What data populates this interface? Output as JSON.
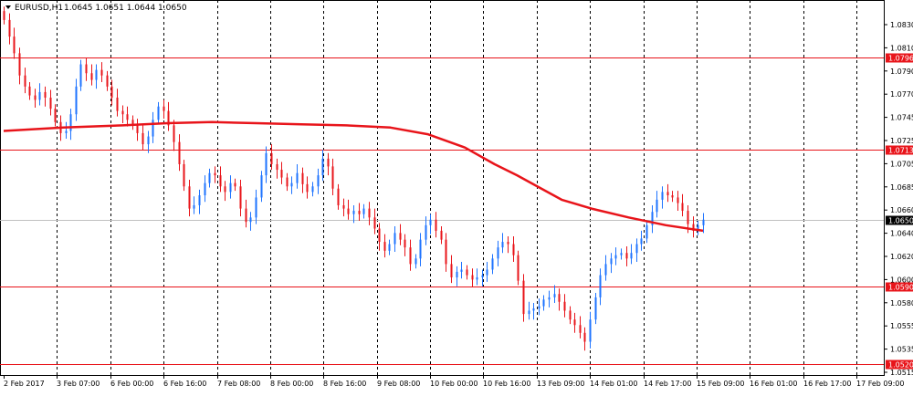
{
  "header": {
    "symbol": "EURUSD,H1",
    "ohlc": "1.0645 1.0651 1.0644 1.0650"
  },
  "colors": {
    "bull": "#1e73ff",
    "bear": "#e8141a",
    "ma": "#e8141a",
    "hline": "#e8141a",
    "price_line": "#c0c0c0",
    "grid": "#000000"
  },
  "chart_data": {
    "type": "candlestick",
    "ylim": [
      1.051,
      1.0848
    ],
    "y_ticks": [
      "1.0830",
      "1.0810",
      "1.0790",
      "1.0770",
      "1.0745",
      "1.0725",
      "1.0705",
      "1.0685",
      "1.0660",
      "1.0640",
      "1.0620",
      "1.0600",
      "1.0580",
      "1.0555",
      "1.0535",
      "1.0515"
    ],
    "x_ticks": [
      "2 Feb 2017",
      "3 Feb 07:00",
      "6 Feb 00:00",
      "6 Feb 16:00",
      "7 Feb 08:00",
      "8 Feb 00:00",
      "8 Feb 16:00",
      "9 Feb 08:00",
      "10 Feb 00:00",
      "10 Feb 16:00",
      "13 Feb 09:00",
      "14 Feb 01:00",
      "14 Feb 17:00",
      "15 Feb 09:00",
      "16 Feb 01:00",
      "16 Feb 17:00",
      "17 Feb 09:00"
    ],
    "horizontal_levels": [
      {
        "label": "1.0796",
        "value": 1.0796
      },
      {
        "label": "1.0713",
        "value": 1.0713
      },
      {
        "label": "1.0590",
        "value": 1.059
      },
      {
        "label": "1.0520",
        "value": 1.052
      }
    ],
    "current_price": {
      "label": "1.0650",
      "value": 1.065
    },
    "close": [
      1.083,
      1.0815,
      1.08,
      1.078,
      1.077,
      1.0762,
      1.0758,
      1.0765,
      1.076,
      1.075,
      1.0738,
      1.0728,
      1.073,
      1.0745,
      1.077,
      1.079,
      1.0782,
      1.0776,
      1.0785,
      1.078,
      1.077,
      1.076,
      1.0748,
      1.0745,
      1.074,
      1.0735,
      1.0728,
      1.0718,
      1.0725,
      1.074,
      1.0752,
      1.0748,
      1.0735,
      1.072,
      1.07,
      1.068,
      1.066,
      1.0663,
      1.0672,
      1.0683,
      1.0692,
      1.069,
      1.068,
      1.0675,
      1.0683,
      1.068,
      1.066,
      1.0648,
      1.0652,
      1.067,
      1.069,
      1.071,
      1.07,
      1.0695,
      1.0688,
      1.068,
      1.0683,
      1.0692,
      1.0682,
      1.0675,
      1.068,
      1.069,
      1.0705,
      1.0698,
      1.0678,
      1.0663,
      1.066,
      1.0655,
      1.0658,
      1.0655,
      1.066,
      1.0652,
      1.0642,
      1.063,
      1.0622,
      1.0628,
      1.0638,
      1.0632,
      1.0625,
      1.061,
      1.0615,
      1.0632,
      1.0645,
      1.065,
      1.064,
      1.0632,
      1.061,
      1.0598,
      1.0603,
      1.0605,
      1.06,
      1.0596,
      1.0598,
      1.06,
      1.0605,
      1.0615,
      1.0625,
      1.063,
      1.0628,
      1.0618,
      1.0595,
      1.0565,
      1.0568,
      1.057,
      1.0572,
      1.0578,
      1.058,
      1.0583,
      1.0576,
      1.0568,
      1.056,
      1.0555,
      1.0548,
      1.054,
      1.056,
      1.058,
      1.06,
      1.061,
      1.0615,
      1.0618,
      1.062,
      1.0615,
      1.062,
      1.0628,
      1.0633,
      1.0645,
      1.0657,
      1.0668,
      1.0675,
      1.0672,
      1.067,
      1.0665,
      1.0658,
      1.0646,
      1.064,
      1.0645,
      1.065
    ],
    "ma_values": [
      1.073,
      1.0733,
      1.0735,
      1.0737,
      1.0738,
      1.0737,
      1.0736,
      1.0735,
      1.0733,
      1.0727,
      1.0715,
      1.07,
      1.069,
      1.0679,
      1.0668,
      1.066,
      1.0652,
      1.0645,
      1.064
    ],
    "ma_x_fraction": [
      0.0,
      0.08,
      0.16,
      0.22,
      0.28,
      0.34,
      0.4,
      0.46,
      0.52,
      0.57,
      0.62,
      0.66,
      0.69,
      0.72,
      0.75,
      0.79,
      0.84,
      0.89,
      0.94
    ]
  }
}
